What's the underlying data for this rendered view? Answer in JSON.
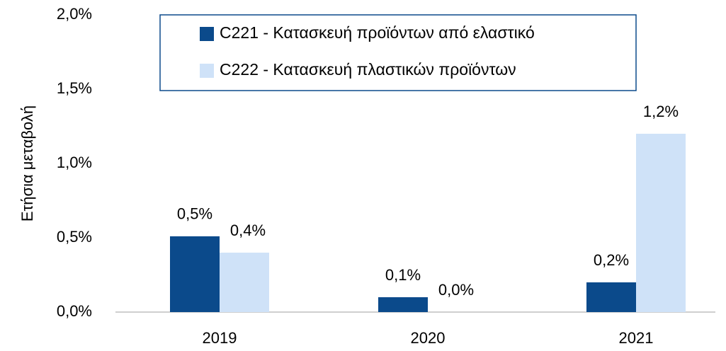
{
  "chart_data": {
    "type": "bar",
    "y_label": "Ετήσια μεταβολή",
    "categories": [
      "2019",
      "2020",
      "2021"
    ],
    "series": [
      {
        "name": "C221 - Κατασκευή προϊόντων από ελαστικό",
        "color": "#0b4a8b",
        "values": [
          0.51,
          0.1,
          0.2
        ],
        "value_labels": [
          "0,5%",
          "0,1%",
          "0,2%"
        ]
      },
      {
        "name": "C222 - Κατασκευή πλαστικών προϊόντων",
        "color": "#cfe2f8",
        "values": [
          0.4,
          0.0,
          1.2
        ],
        "value_labels": [
          "0,4%",
          "0,0%",
          "1,2%"
        ]
      }
    ],
    "ylim": [
      0,
      2.0
    ],
    "yticks": [
      {
        "value": 0,
        "label": "0,0%"
      },
      {
        "value": 0.5,
        "label": "0,5%"
      },
      {
        "value": 1.0,
        "label": "1,0%"
      },
      {
        "value": 1.5,
        "label": "1,5%"
      },
      {
        "value": 2.0,
        "label": "2,0%"
      }
    ]
  }
}
